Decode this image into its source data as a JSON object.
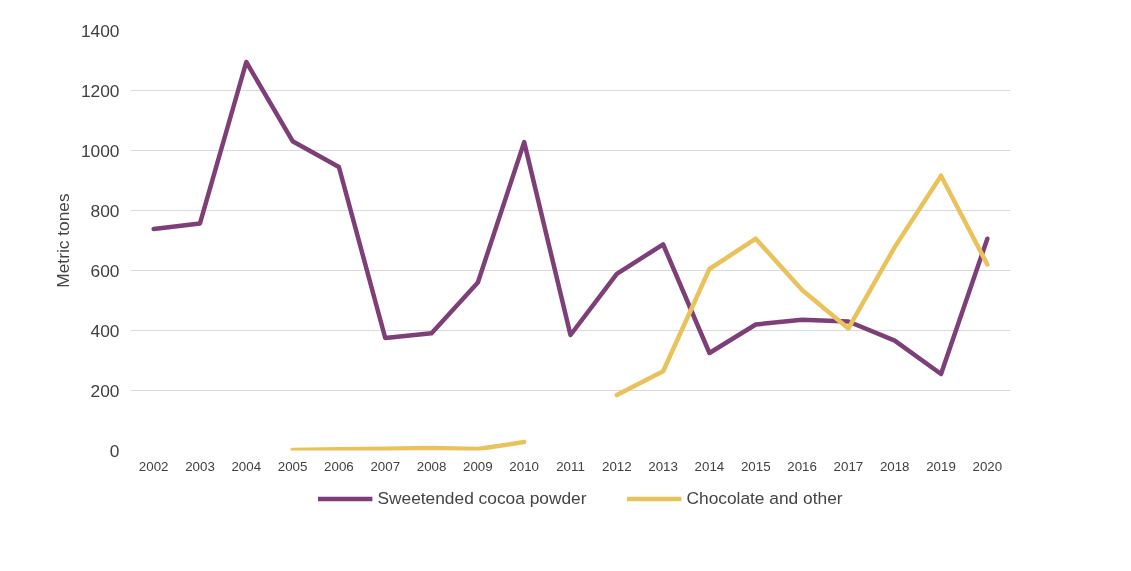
{
  "chart_data": {
    "type": "line",
    "ylabel": "Metric tones",
    "categories": [
      "2002",
      "2003",
      "2004",
      "2005",
      "2006",
      "2007",
      "2008",
      "2009",
      "2010",
      "2011",
      "2012",
      "2013",
      "2014",
      "2015",
      "2016",
      "2017",
      "2018",
      "2019",
      "2020"
    ],
    "series": [
      {
        "name": "Sweetended cocoa powder",
        "color": "#7e3f78",
        "values": [
          738,
          757,
          1295,
          1031,
          945,
          375,
          391,
          560,
          1028,
          385,
          589,
          687,
          325,
          420,
          436,
          430,
          366,
          255,
          706
        ]
      },
      {
        "name": "Chocolate and other",
        "color": "#e9c25b",
        "values": [
          null,
          null,
          null,
          2,
          4,
          6,
          8,
          5,
          28,
          null,
          185,
          264,
          605,
          706,
          535,
          407,
          678,
          916,
          620
        ]
      }
    ],
    "ylim": [
      0,
      1400
    ],
    "yticks": [
      0,
      200,
      400,
      600,
      800,
      1000,
      1200,
      1400
    ],
    "grid": "y",
    "legend": "bottom",
    "line_style": "solid",
    "marker": "none"
  }
}
